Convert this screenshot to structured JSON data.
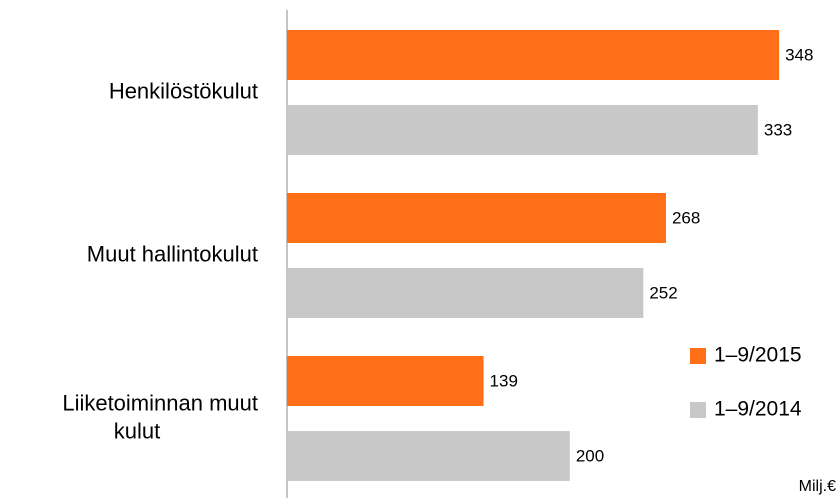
{
  "chart_data": {
    "type": "barh",
    "categories": [
      "Henkilöstökulut",
      "Muut hallintokulut",
      "Liiketoiminnan muut kulut"
    ],
    "series": [
      {
        "name": "1–9/2015",
        "color": "#ff6f17",
        "values": [
          348,
          268,
          139
        ]
      },
      {
        "name": "1–9/2014",
        "color": "#c8c8c8",
        "values": [
          333,
          252,
          200
        ]
      }
    ],
    "xlim": [
      0,
      390
    ],
    "unit": "Milj.€",
    "legend": "right"
  }
}
